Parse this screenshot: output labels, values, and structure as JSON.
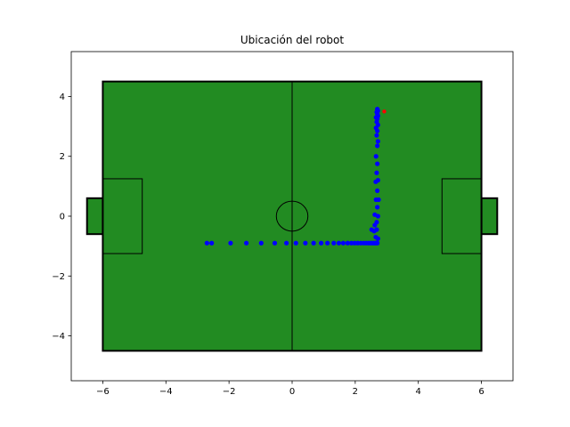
{
  "chart_data": {
    "type": "scatter",
    "title": "Ubicación del robot",
    "xlabel": "",
    "ylabel": "",
    "xlim": [
      -7,
      7
    ],
    "ylim": [
      -5.5,
      5.5
    ],
    "x_ticks": [
      -6,
      -4,
      -2,
      0,
      2,
      4,
      6
    ],
    "y_ticks": [
      -4,
      -2,
      0,
      2,
      4
    ],
    "grid": false,
    "field": {
      "color": "#228b22",
      "line_color": "#000000",
      "outer": {
        "x": [
          -6,
          6
        ],
        "y": [
          -4.5,
          4.5
        ]
      },
      "center_line_x": 0,
      "center_circle": {
        "cx": 0,
        "cy": 0,
        "r": 0.5
      },
      "left_penalty_box": {
        "x": [
          -6,
          -4.75
        ],
        "y": [
          -1.25,
          1.25
        ]
      },
      "right_penalty_box": {
        "x": [
          4.75,
          6
        ],
        "y": [
          -1.25,
          1.25
        ]
      },
      "left_goal": {
        "x": [
          -6.5,
          -6
        ],
        "y": [
          -0.6,
          0.6
        ]
      },
      "right_goal": {
        "x": [
          6,
          6.5
        ],
        "y": [
          -0.6,
          0.6
        ]
      }
    },
    "series": [
      {
        "color": "#0000ff",
        "points": [
          [
            -2.7,
            -0.9
          ],
          [
            -2.55,
            -0.9
          ],
          [
            -1.95,
            -0.9
          ],
          [
            -1.45,
            -0.9
          ],
          [
            -0.98,
            -0.9
          ],
          [
            -0.55,
            -0.9
          ],
          [
            -0.18,
            -0.9
          ],
          [
            0.12,
            -0.9
          ],
          [
            0.42,
            -0.9
          ],
          [
            0.68,
            -0.9
          ],
          [
            0.92,
            -0.9
          ],
          [
            1.12,
            -0.9
          ],
          [
            1.32,
            -0.9
          ],
          [
            1.48,
            -0.9
          ],
          [
            1.62,
            -0.9
          ],
          [
            1.76,
            -0.9
          ],
          [
            1.88,
            -0.9
          ],
          [
            1.98,
            -0.9
          ],
          [
            2.08,
            -0.9
          ],
          [
            2.18,
            -0.9
          ],
          [
            2.27,
            -0.9
          ],
          [
            2.35,
            -0.9
          ],
          [
            2.42,
            -0.9
          ],
          [
            2.48,
            -0.9
          ],
          [
            2.53,
            -0.9
          ],
          [
            2.58,
            -0.9
          ],
          [
            2.62,
            -0.9
          ],
          [
            2.65,
            -0.9
          ],
          [
            2.68,
            -0.9
          ],
          [
            2.7,
            -0.9
          ],
          [
            2.52,
            -0.45
          ],
          [
            2.6,
            -0.5
          ],
          [
            2.68,
            -0.45
          ],
          [
            2.72,
            -0.75
          ],
          [
            2.65,
            -0.7
          ],
          [
            2.62,
            -0.3
          ],
          [
            2.68,
            -0.2
          ],
          [
            2.72,
            0.0
          ],
          [
            2.62,
            0.05
          ],
          [
            2.7,
            0.3
          ],
          [
            2.66,
            0.55
          ],
          [
            2.74,
            0.55
          ],
          [
            2.7,
            0.85
          ],
          [
            2.65,
            1.15
          ],
          [
            2.72,
            1.2
          ],
          [
            2.68,
            1.45
          ],
          [
            2.7,
            1.75
          ],
          [
            2.66,
            2.0
          ],
          [
            2.7,
            2.35
          ],
          [
            2.72,
            2.5
          ],
          [
            2.68,
            2.7
          ],
          [
            2.7,
            2.85
          ],
          [
            2.66,
            2.95
          ],
          [
            2.72,
            3.05
          ],
          [
            2.68,
            3.15
          ],
          [
            2.7,
            3.25
          ],
          [
            2.66,
            3.3
          ],
          [
            2.72,
            3.35
          ],
          [
            2.7,
            3.42
          ],
          [
            2.68,
            3.48
          ],
          [
            2.72,
            3.52
          ],
          [
            2.7,
            3.58
          ]
        ]
      },
      {
        "color": "#ff0000",
        "points": [
          [
            2.92,
            3.5
          ]
        ]
      }
    ]
  }
}
